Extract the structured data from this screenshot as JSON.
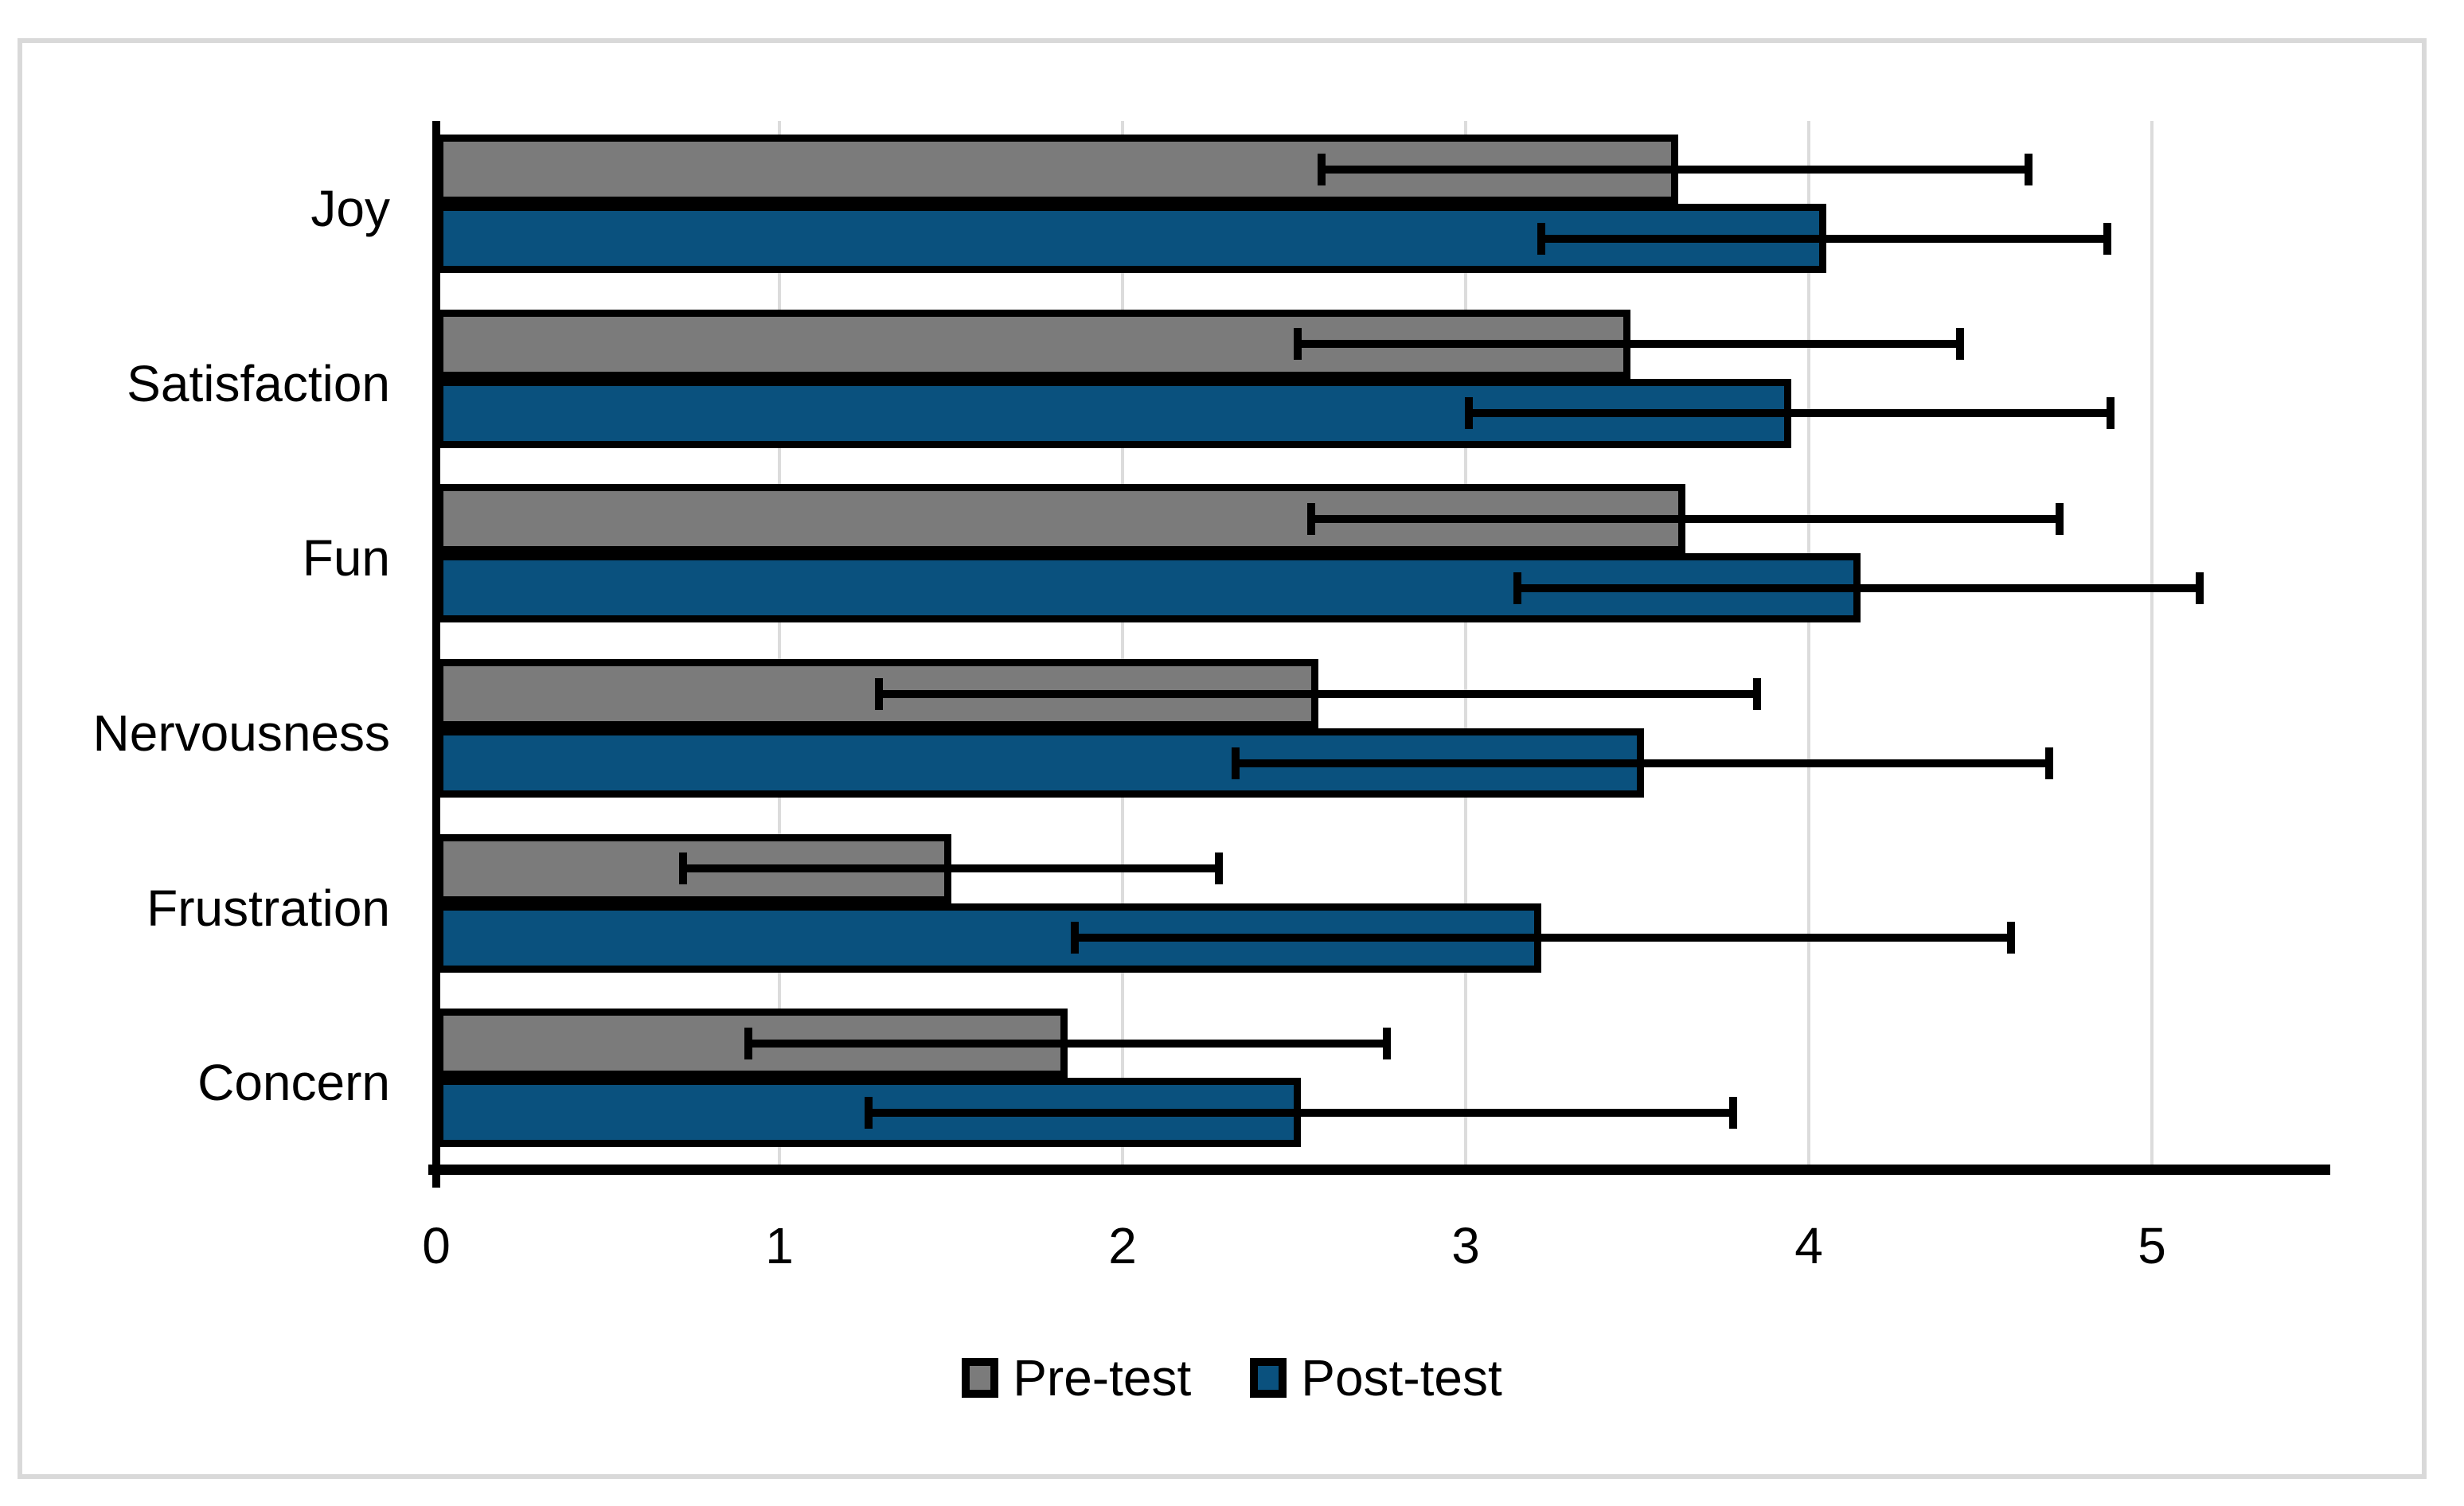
{
  "chart_data": {
    "type": "bar",
    "orientation": "horizontal",
    "title": "",
    "xlabel": "",
    "ylabel": "",
    "categories": [
      "Joy",
      "Satisfaction",
      "Fun",
      "Nervousness",
      "Frustration",
      "Concern"
    ],
    "series": [
      {
        "name": "Pre-test",
        "color": "#7B7B7B",
        "values": [
          3.62,
          3.48,
          3.64,
          2.57,
          1.5,
          1.84
        ],
        "error_low": [
          2.58,
          2.51,
          2.55,
          1.29,
          0.72,
          0.91
        ],
        "error_high": [
          4.64,
          4.44,
          4.73,
          3.85,
          2.28,
          2.77
        ]
      },
      {
        "name": "Post-test",
        "color": "#0A517E",
        "values": [
          4.05,
          3.95,
          4.15,
          3.52,
          3.22,
          2.52
        ],
        "error_low": [
          3.22,
          3.01,
          3.15,
          2.33,
          1.86,
          1.26
        ],
        "error_high": [
          4.87,
          4.88,
          5.14,
          4.7,
          4.59,
          3.78
        ]
      }
    ],
    "xlim": [
      0,
      5.5
    ],
    "xticks": [
      0,
      1,
      2,
      3,
      4,
      5
    ],
    "grid": true,
    "error_bars": true,
    "legend_position": "bottom"
  },
  "style": {
    "background": "#FFFFFF",
    "frame_color": "#D9D9D9",
    "gridline_color": "#DCDCDC",
    "axis_color": "#000000",
    "text_color": "#000000"
  }
}
